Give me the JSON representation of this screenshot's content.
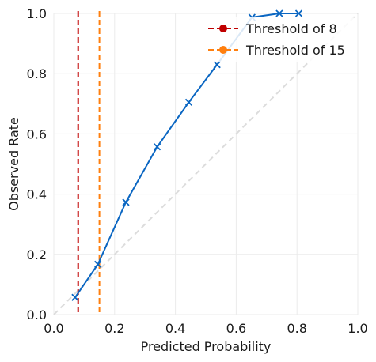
{
  "chart_data": {
    "type": "line",
    "title": "",
    "xlabel": "Predicted Probability",
    "ylabel": "Observed Rate",
    "xlim": [
      0,
      1
    ],
    "ylim": [
      0,
      1
    ],
    "xticks": [
      "0.0",
      "0.2",
      "0.4",
      "0.6",
      "0.8",
      "1.0"
    ],
    "yticks": [
      "0.0",
      "0.2",
      "0.4",
      "0.6",
      "0.8",
      "1.0"
    ],
    "grid": true,
    "legend_position": "top-right",
    "reference_line": {
      "x": [
        0,
        1
      ],
      "y": [
        0,
        1
      ],
      "color": "#dcdcdc",
      "style": "dashed"
    },
    "series": [
      {
        "color": "#0a66c2",
        "marker": "x",
        "x": [
          0.07,
          0.145,
          0.237,
          0.34,
          0.444,
          0.537,
          0.652,
          0.742,
          0.806
        ],
        "y": [
          0.057,
          0.167,
          0.373,
          0.557,
          0.705,
          0.83,
          0.987,
          1.0,
          1.0
        ]
      }
    ],
    "thresholds": [
      {
        "name": "Threshold of 8",
        "x": 0.08,
        "color": "#c00000"
      },
      {
        "name": "Threshold of 15",
        "x": 0.15,
        "color": "#ff7f0e"
      }
    ]
  }
}
